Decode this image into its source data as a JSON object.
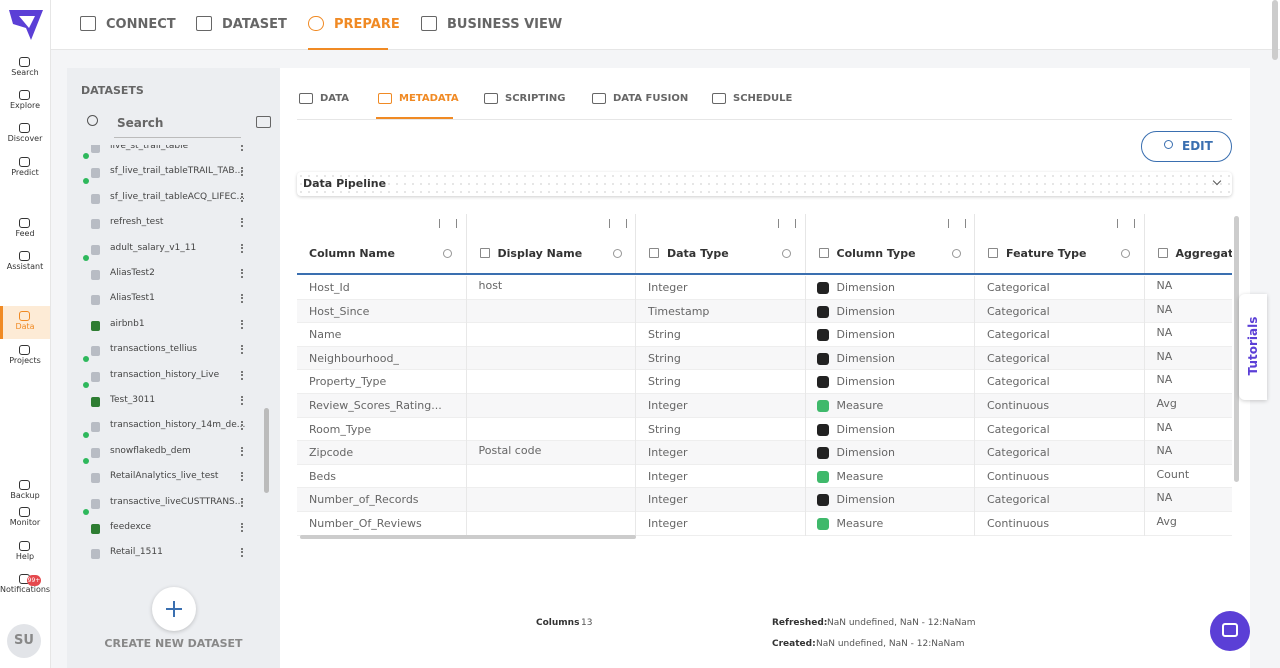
{
  "nav": {
    "items": [
      "Search",
      "Explore",
      "Discover",
      "Predict",
      "Feed",
      "Assistant",
      "Data",
      "Projects",
      "Backup",
      "Monitor",
      "Help",
      "Notifications"
    ],
    "notification_badge": "99+",
    "avatar": "SU"
  },
  "top_tabs": [
    "CONNECT",
    "DATASET",
    "PREPARE",
    "BUSINESS VIEW"
  ],
  "datasets": {
    "title": "DATASETS",
    "search_placeholder": "Search",
    "items": [
      "live_st_trail_table",
      "sf_live_trail_tableTRAIL_TAB...",
      "sf_live_trail_tableACQ_LIFEC...",
      "refresh_test",
      "adult_salary_v1_11",
      "AliasTest2",
      "AliasTest1",
      "airbnb1",
      "transactions_tellius",
      "transaction_history_Live",
      "Test_3011",
      "transaction_history_14m_de...",
      "snowflakedb_dem",
      "RetailAnalytics_live_test",
      "transactive_liveCUSTTRANS...",
      "feedexce",
      "Retail_1511"
    ],
    "create_button": "CREATE NEW DATASET"
  },
  "sub_tabs": [
    "DATA",
    "METADATA",
    "SCRIPTING",
    "DATA FUSION",
    "SCHEDULE"
  ],
  "edit_button": "EDIT",
  "pipeline_label": "Data Pipeline",
  "table": {
    "headers": [
      "Column Name",
      "Display Name",
      "Data Type",
      "Column Type",
      "Feature Type",
      "Aggregatio"
    ],
    "rows": [
      [
        "Host_Id",
        "host",
        "Integer",
        "Dimension",
        "Categorical",
        "NA"
      ],
      [
        "Host_Since",
        null,
        "Timestamp",
        "Dimension",
        "Categorical",
        "NA"
      ],
      [
        "Name",
        null,
        "String",
        "Dimension",
        "Categorical",
        "NA"
      ],
      [
        "Neighbourhood_",
        null,
        "String",
        "Dimension",
        "Categorical",
        "NA"
      ],
      [
        "Property_Type",
        null,
        "String",
        "Dimension",
        "Categorical",
        "NA"
      ],
      [
        "Review_Scores_Rating...",
        null,
        "Integer",
        "Measure",
        "Continuous",
        "Avg"
      ],
      [
        "Room_Type",
        null,
        "String",
        "Dimension",
        "Categorical",
        "NA"
      ],
      [
        "Zipcode",
        "Postal code",
        "Integer",
        "Dimension",
        "Categorical",
        "NA"
      ],
      [
        "Beds",
        null,
        "Integer",
        "Measure",
        "Continuous",
        "Count"
      ],
      [
        "Number_of_Records",
        null,
        "Integer",
        "Dimension",
        "Categorical",
        "NA"
      ],
      [
        "Number_Of_Reviews",
        null,
        "Integer",
        "Measure",
        "Continuous",
        "Avg"
      ]
    ]
  },
  "footer": {
    "columns_label": "Columns",
    "columns_count": "13",
    "refreshed_label": "Refreshed:",
    "refreshed_value": "NaN undefined, NaN - 12:NaNam",
    "created_label": "Created:",
    "created_value": "NaN undefined, NaN - 12:NaNam"
  },
  "tutorials": "Tutorials"
}
